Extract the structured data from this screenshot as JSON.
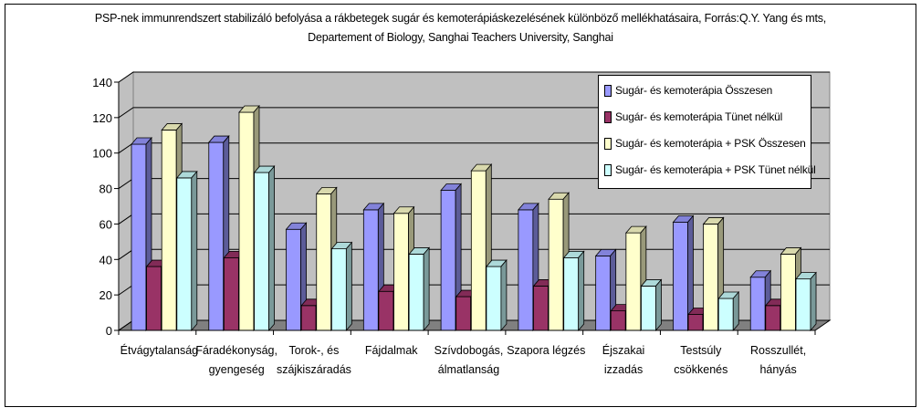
{
  "chart_data": {
    "type": "bar",
    "title_lines": [
      "PSP-nek immunrendszert stabilizáló befolyása a rákbetegek sugár és kemoterápiáskezelésének különböző mellékhatásaira, Forrás:Q.Y. Yang és mts,",
      "Departement of Biology, Sanghai Teachers University, Sanghai"
    ],
    "categories": [
      [
        "Étvágytalanság"
      ],
      [
        "Fáradékonyság,",
        "gyengeség"
      ],
      [
        "Torok-, és",
        "szájkiszáradás"
      ],
      [
        "Fájdalmak"
      ],
      [
        "Szívdobogás,",
        "álmatlanság"
      ],
      [
        "Szapora légzés"
      ],
      [
        "Éjszakai",
        "izzadás"
      ],
      [
        "Testsúly",
        "csökkenés"
      ],
      [
        "Rosszullét,",
        "hányás"
      ]
    ],
    "series": [
      {
        "name": "Sugár- és kemoterápia Összesen",
        "color": "#9999ff",
        "values": [
          105,
          106,
          57,
          68,
          79,
          68,
          42,
          61,
          30
        ]
      },
      {
        "name": "Sugár- és kemoterápia Tünet nélkül",
        "color": "#993366",
        "values": [
          36,
          41,
          14,
          22,
          19,
          25,
          11,
          9,
          14
        ]
      },
      {
        "name": "Sugár- és kemoterápia + PSK Összesen",
        "color": "#ffffcc",
        "values": [
          113,
          123,
          77,
          66,
          90,
          74,
          55,
          60,
          43
        ]
      },
      {
        "name": "Sugár- és kemoterápia + PSK Tünet nélkül",
        "color": "#ccffff",
        "values": [
          86,
          89,
          46,
          43,
          36,
          41,
          25,
          18,
          29
        ]
      }
    ],
    "ylim": [
      0,
      140
    ],
    "yticks": [
      0,
      20,
      40,
      60,
      80,
      100,
      120,
      140
    ],
    "grid": true,
    "legend_position": "top-right",
    "wall_color": "#c0c0c0",
    "floor_color": "#808080"
  }
}
